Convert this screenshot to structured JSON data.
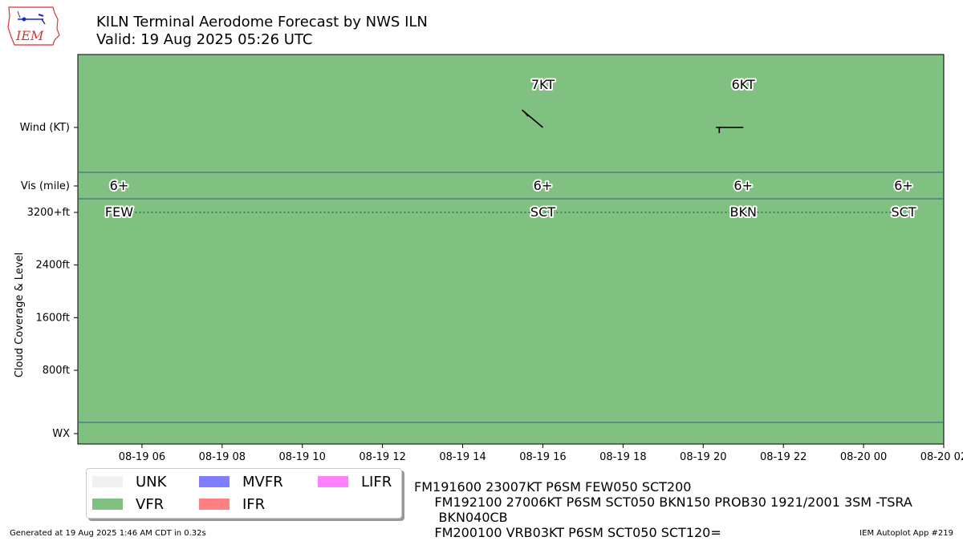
{
  "logo": {
    "text": "IEM"
  },
  "title": {
    "line1": "KILN Terminal Aerodome Forecast by NWS ILN",
    "line2": "Valid: 19 Aug 2025 05:26 UTC"
  },
  "colors": {
    "background": "#80c080",
    "band_line": "#3a5a8a",
    "ceiling_line": "#1f7a3a",
    "UNK": "#f0f0f0",
    "VFR": "#80c080",
    "MVFR": "#7e7eff",
    "IFR": "#ff8080",
    "LIFR": "#ff80ff"
  },
  "legend": [
    {
      "key": "UNK",
      "label": "UNK"
    },
    {
      "key": "MVFR",
      "label": "MVFR"
    },
    {
      "key": "LIFR",
      "label": "LIFR"
    },
    {
      "key": "VFR",
      "label": "VFR"
    },
    {
      "key": "IFR",
      "label": "IFR"
    }
  ],
  "chart_data": {
    "type": "timeline",
    "title": "KILN Terminal Aerodome Forecast by NWS ILN",
    "subtitle": "Valid: 19 Aug 2025 05:26 UTC",
    "ylabel": "Cloud Coverage & Level",
    "xlim_hours_utc_from_2025_08_19_00": [
      4.4,
      26.0
    ],
    "x_tick_hours": [
      6,
      8,
      10,
      12,
      14,
      16,
      18,
      20,
      22,
      24,
      26
    ],
    "x_tick_labels": [
      "08-19 06",
      "08-19 08",
      "08-19 10",
      "08-19 12",
      "08-19 14",
      "08-19 16",
      "08-19 18",
      "08-19 20",
      "08-19 22",
      "08-20 00",
      "08-20 02"
    ],
    "y_row_labels": {
      "wind": "Wind (KT)",
      "vis": "Vis (mile)",
      "wx": "WX"
    },
    "y_cloud_ticks": [
      {
        "value": 3200,
        "label": "3200+ft"
      },
      {
        "value": 2400,
        "label": "2400ft"
      },
      {
        "value": 1600,
        "label": "1600ft"
      },
      {
        "value": 800,
        "label": "800ft"
      }
    ],
    "y_cloud_range_ft": [
      0,
      3200
    ],
    "periods": [
      {
        "hour": 5.43,
        "category": "VFR",
        "vis": "6+",
        "sky": "FEW",
        "cloud_level_ft": 3200,
        "wind_dir": null,
        "wind_kt": null,
        "wind_label": ""
      },
      {
        "hour": 16,
        "category": "VFR",
        "vis": "6+",
        "sky": "SCT",
        "cloud_level_ft": 3200,
        "wind_dir": 230,
        "wind_kt": 7,
        "wind_label": "7KT"
      },
      {
        "hour": 21,
        "category": "VFR",
        "vis": "6+",
        "sky": "BKN",
        "cloud_level_ft": 3200,
        "wind_dir": 270,
        "wind_kt": 6,
        "wind_label": "6KT"
      },
      {
        "hour": 25,
        "category": "VFR",
        "vis": "6+",
        "sky": "SCT",
        "cloud_level_ft": 3200,
        "wind_dir": null,
        "wind_kt": null,
        "wind_label": ""
      }
    ],
    "grid": false
  },
  "taf_lines": [
    "FM191600 23007KT P6SM FEW050 SCT200",
    "     FM192100 27006KT P6SM SCT050 BKN150 PROB30 1921/2001 3SM -TSRA",
    "      BKN040CB",
    "     FM200100 VRB03KT P6SM SCT050 SCT120="
  ],
  "footer": {
    "left": "Generated at 19 Aug 2025 1:46 AM CDT in 0.32s",
    "right": "IEM Autoplot App #219"
  }
}
